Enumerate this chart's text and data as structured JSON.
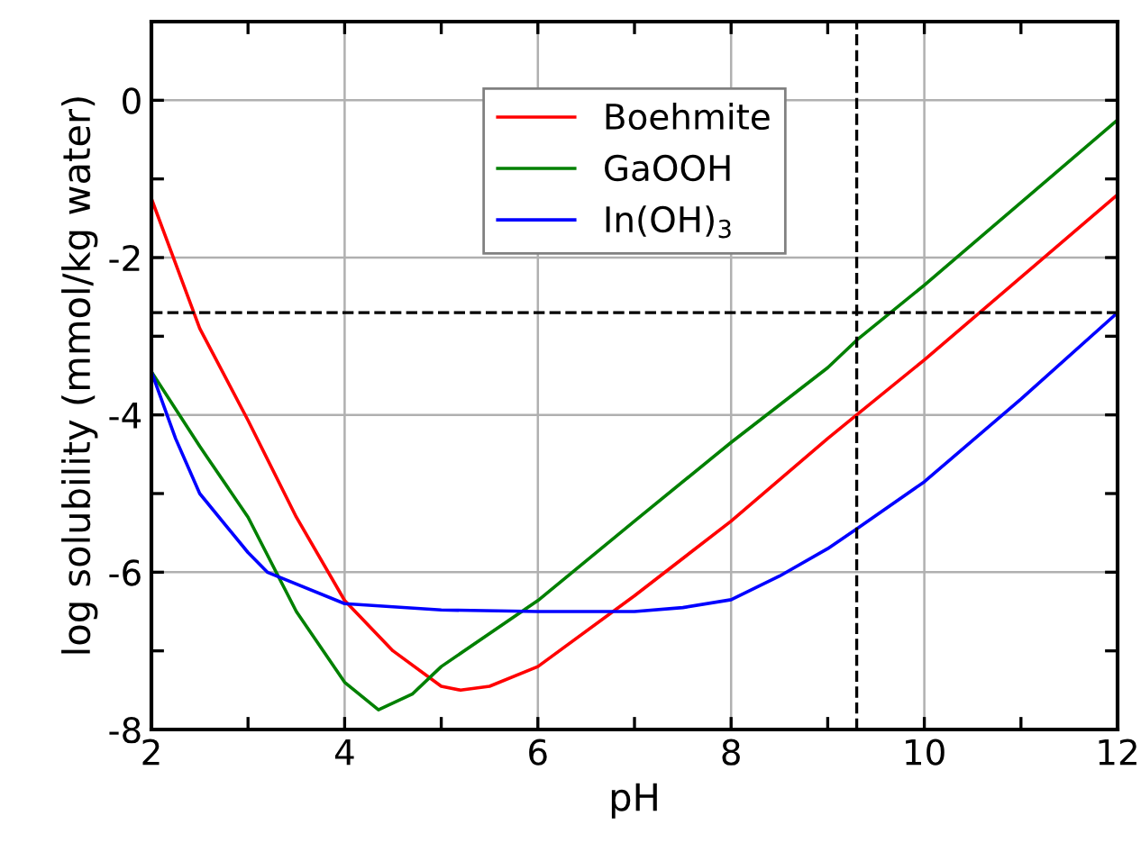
{
  "chart_data": {
    "type": "line",
    "xlabel": "pH",
    "ylabel": "log solubility (mmol/kg water)",
    "xlim": [
      2,
      12
    ],
    "ylim": [
      -8,
      1
    ],
    "xticks": [
      2,
      {
        "value": 3,
        "label": null
      },
      4,
      {
        "value": 5,
        "label": null
      },
      6,
      {
        "value": 7,
        "label": null
      },
      8,
      {
        "value": 9,
        "label": null
      },
      10,
      {
        "value": 11,
        "label": null
      },
      12
    ],
    "yticks": [
      -8,
      {
        "value": -7,
        "label": null
      },
      -6,
      {
        "value": -5,
        "label": null
      },
      -4,
      {
        "value": -3,
        "label": null
      },
      -2,
      {
        "value": -1,
        "label": null
      },
      0
    ],
    "grid": true,
    "legend": "top",
    "line_style": "solid",
    "marker": "none",
    "series": [
      {
        "name": "Boehmite",
        "color": "#ff0000",
        "x": [
          2,
          2.5,
          3,
          3.5,
          4,
          4.5,
          5,
          5.2,
          5.5,
          6,
          7,
          8,
          9,
          9.3,
          10,
          11,
          12
        ],
        "values": [
          -1.25,
          -2.9,
          -4.07,
          -5.3,
          -6.36,
          -7.0,
          -7.45,
          -7.5,
          -7.45,
          -7.2,
          -6.3,
          -5.35,
          -4.3,
          -4.0,
          -3.3,
          -2.25,
          -1.2
        ]
      },
      {
        "name": "GaOOH",
        "color": "#008000",
        "x": [
          2,
          2.5,
          3,
          3.5,
          4,
          4.35,
          4.7,
          5,
          6,
          7,
          8,
          9,
          9.3,
          10,
          11,
          12
        ],
        "values": [
          -3.45,
          -4.4,
          -5.3,
          -6.5,
          -7.4,
          -7.75,
          -7.55,
          -7.2,
          -6.36,
          -5.35,
          -4.35,
          -3.4,
          -3.05,
          -2.35,
          -1.3,
          -0.25
        ]
      },
      {
        "name": "In(OH)$_{3}$",
        "color": "#0000ff",
        "x": [
          2,
          2.25,
          2.5,
          3,
          3.2,
          4,
          5,
          6,
          7,
          7.5,
          8,
          8.5,
          9,
          9.3,
          10,
          11,
          12
        ],
        "values": [
          -3.45,
          -4.3,
          -5.0,
          -5.75,
          -6.0,
          -6.4,
          -6.48,
          -6.5,
          -6.5,
          -6.45,
          -6.35,
          -6.05,
          -5.7,
          -5.45,
          -4.85,
          -3.8,
          -2.7
        ]
      }
    ],
    "ref_lines": [
      {
        "axis": "y",
        "value": -2.7,
        "color": "#000000",
        "line_style": "dashed"
      },
      {
        "axis": "x",
        "value": 9.3,
        "color": "#000000",
        "line_style": "dashed"
      }
    ]
  }
}
